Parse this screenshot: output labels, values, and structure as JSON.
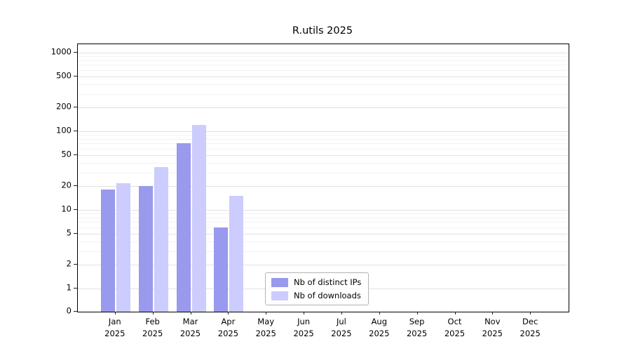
{
  "chart_data": {
    "type": "bar",
    "title": "R.utils 2025",
    "categories": [
      "Jan 2025",
      "Feb 2025",
      "Mar 2025",
      "Apr 2025",
      "May 2025",
      "Jun 2025",
      "Jul 2025",
      "Aug 2025",
      "Sep 2025",
      "Oct 2025",
      "Nov 2025",
      "Dec 2025"
    ],
    "x_tick_months": [
      "Jan",
      "Feb",
      "Mar",
      "Apr",
      "May",
      "Jun",
      "Jul",
      "Aug",
      "Sep",
      "Oct",
      "Nov",
      "Dec"
    ],
    "x_tick_year": "2025",
    "series": [
      {
        "name": "Nb of distinct IPs",
        "color": "#9999ee",
        "values": [
          18,
          20,
          70,
          6,
          0,
          0,
          0,
          0,
          0,
          0,
          0,
          0
        ]
      },
      {
        "name": "Nb of downloads",
        "color": "#ccccff",
        "values": [
          22,
          35,
          120,
          15,
          0,
          0,
          0,
          0,
          0,
          0,
          0,
          0
        ]
      }
    ],
    "y_axis": {
      "scale": "log",
      "ticks": [
        0,
        1,
        2,
        5,
        10,
        20,
        50,
        100,
        200,
        500,
        1000
      ]
    },
    "grid": true,
    "legend_position": "inside-bottom-center"
  }
}
